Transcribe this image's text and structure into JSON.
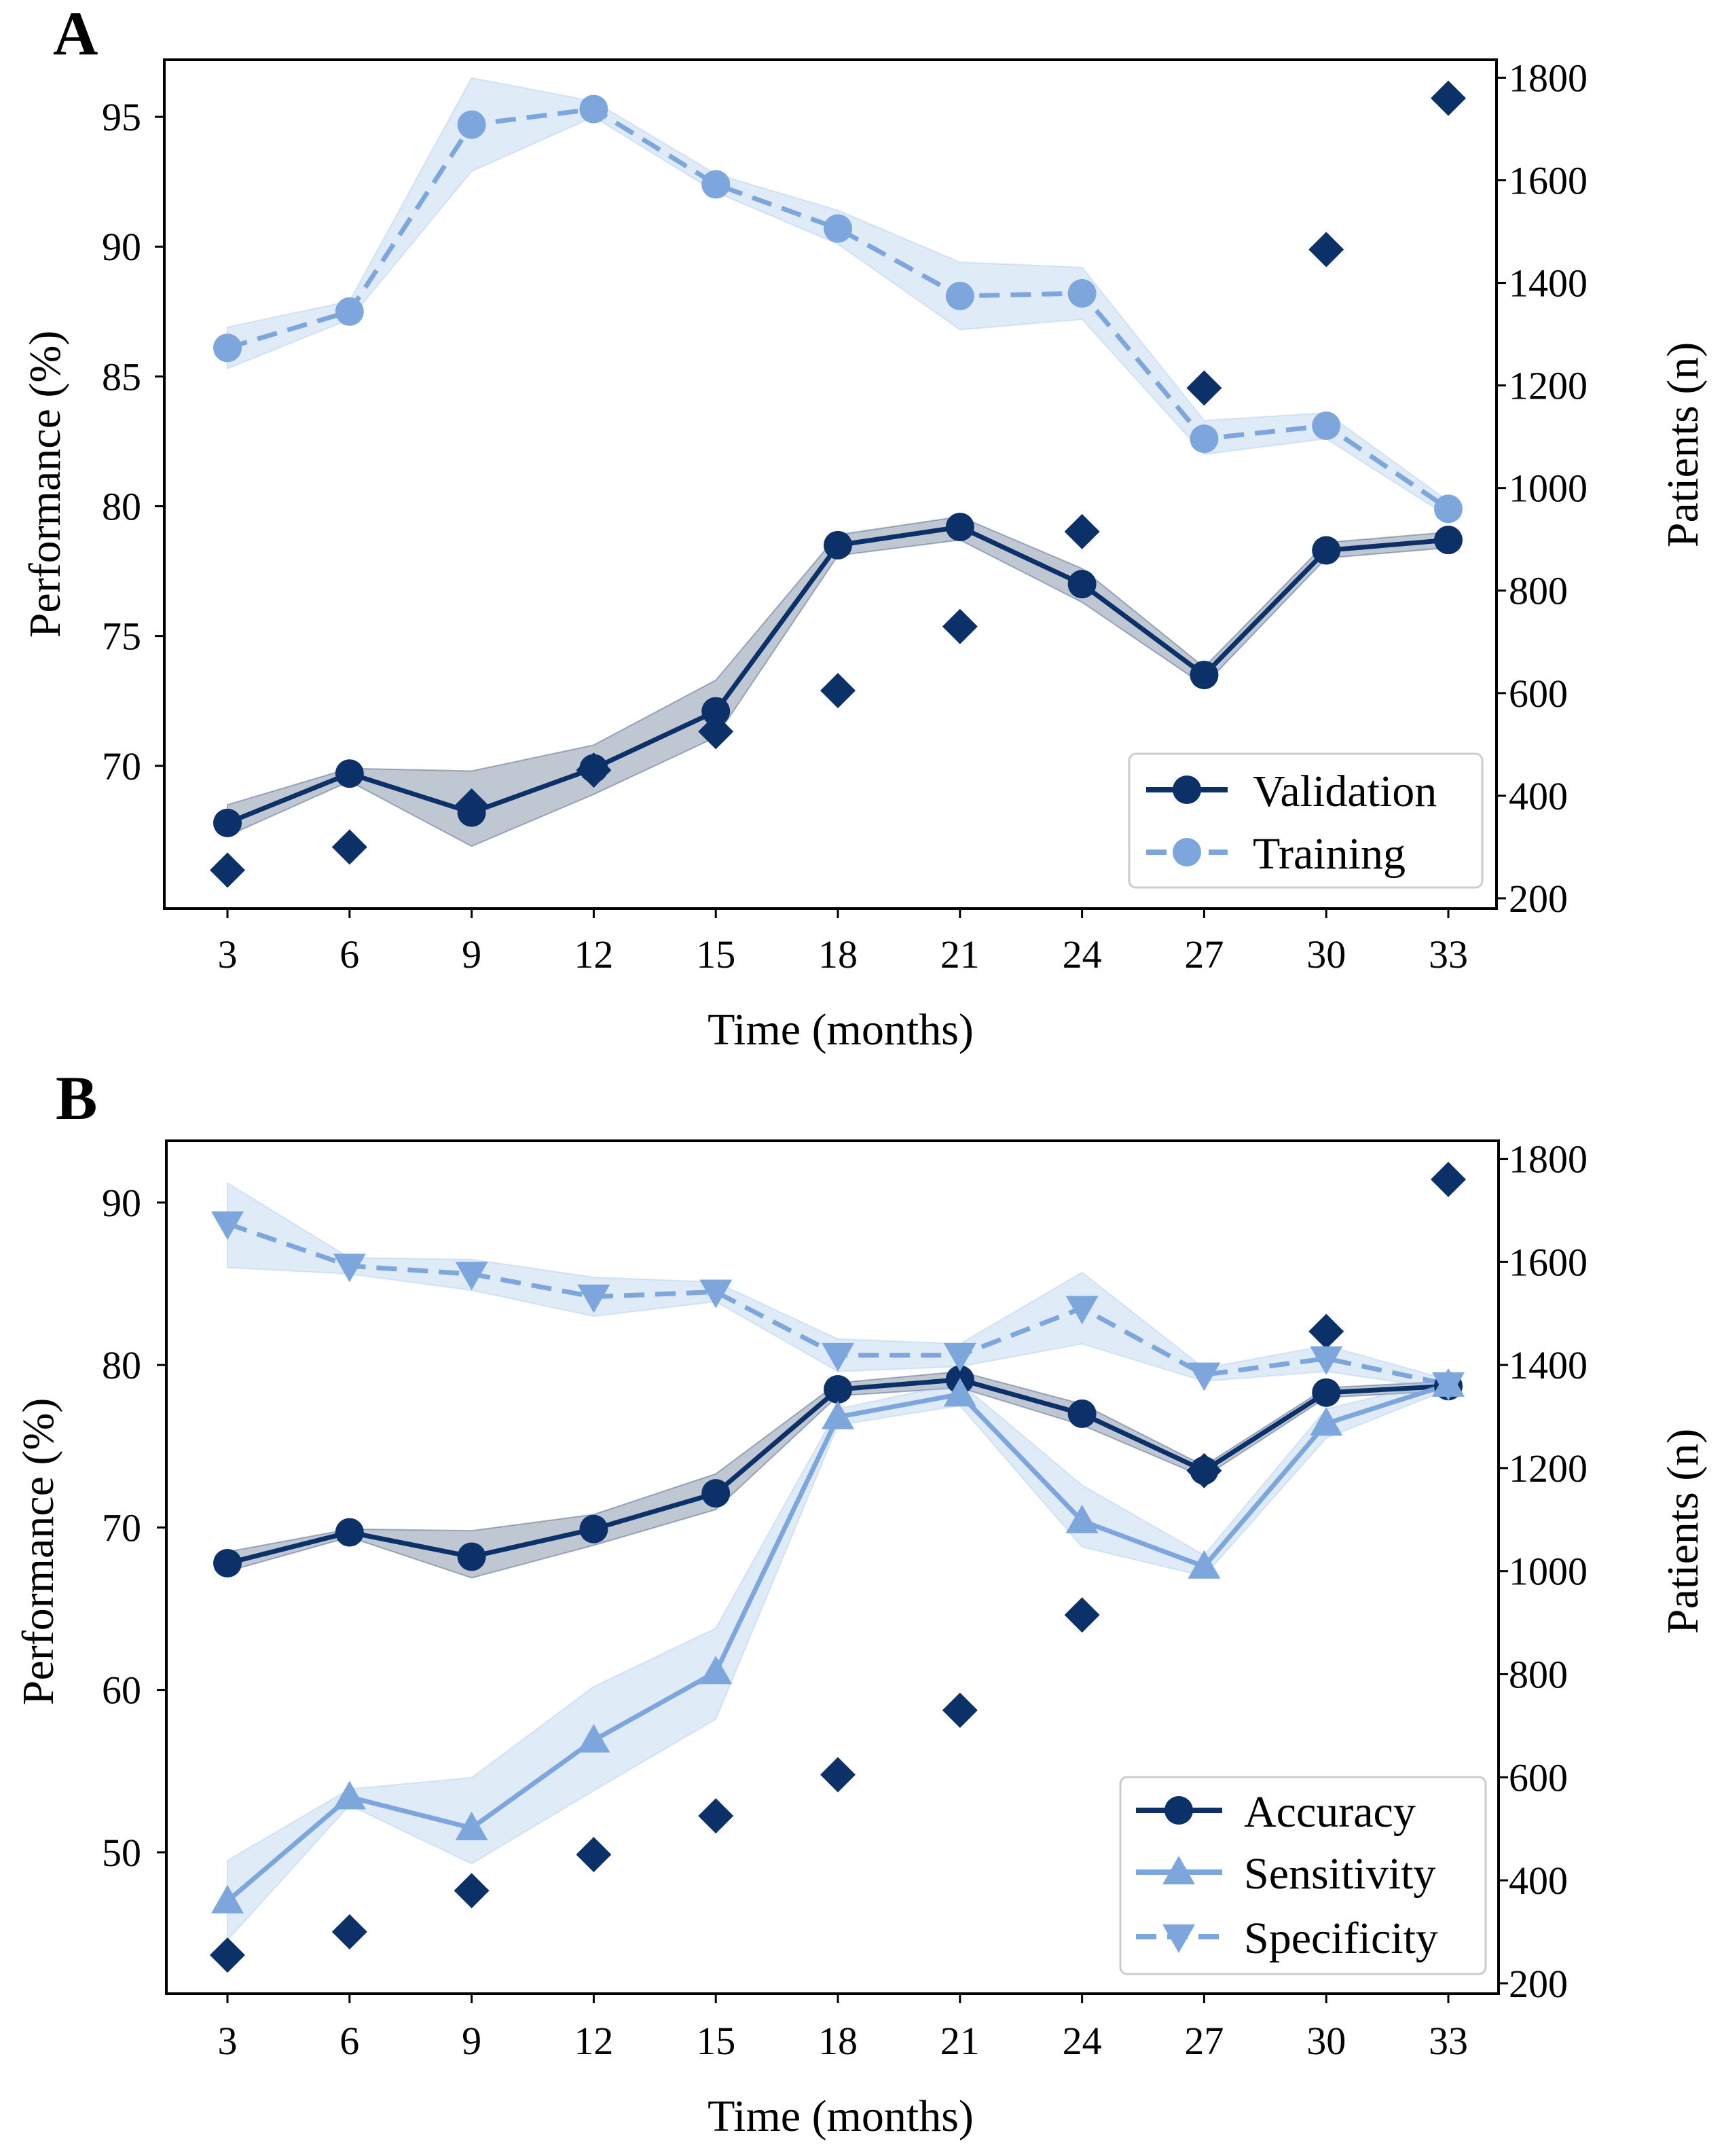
{
  "colors": {
    "dark": "#0b3168",
    "light": "#7da7dc",
    "band_dark": "#1a3560",
    "band_light": "#9fc0ea",
    "frame": "#000000"
  },
  "chart_data": [
    {
      "type": "line",
      "panel_label": "A",
      "xlabel": "Time (months)",
      "ylabel": "Performance (%)",
      "y2label": "Patients (n)",
      "x": [
        3,
        6,
        9,
        12,
        15,
        18,
        21,
        24,
        27,
        30,
        33
      ],
      "xticks": [
        "3",
        "6",
        "9",
        "12",
        "15",
        "18",
        "21",
        "24",
        "27",
        "30",
        "33"
      ],
      "ylim": [
        64.5,
        97.2
      ],
      "yticks": [
        "70",
        "75",
        "80",
        "85",
        "90",
        "95"
      ],
      "y2lim": [
        180,
        1835
      ],
      "y2ticks": [
        "200",
        "400",
        "600",
        "800",
        "1000",
        "1200",
        "1400",
        "1600",
        "1800"
      ],
      "series": [
        {
          "name": "Validation",
          "style": "solid",
          "marker": "circle",
          "color": "dark",
          "values": [
            67.8,
            69.7,
            68.2,
            69.9,
            72.1,
            78.5,
            79.2,
            77.0,
            73.5,
            78.3,
            78.7
          ],
          "band_low": [
            67.3,
            69.4,
            66.9,
            68.9,
            71.1,
            78.1,
            78.7,
            76.3,
            73.1,
            78.0,
            78.4
          ],
          "band_high": [
            68.5,
            69.9,
            69.8,
            70.8,
            73.3,
            78.9,
            79.6,
            77.6,
            73.8,
            78.6,
            79.0
          ]
        },
        {
          "name": "Training",
          "style": "dashed",
          "marker": "circle",
          "color": "light",
          "values": [
            86.1,
            87.5,
            94.7,
            95.3,
            92.4,
            90.7,
            88.1,
            88.2,
            82.6,
            83.1,
            79.9
          ],
          "band_low": [
            85.3,
            87.2,
            92.9,
            95.0,
            92.1,
            90.1,
            86.8,
            87.2,
            82.0,
            82.6,
            79.6
          ],
          "band_high": [
            86.9,
            87.9,
            96.5,
            95.6,
            92.8,
            91.4,
            89.4,
            89.2,
            83.3,
            83.6,
            80.2
          ]
        }
      ],
      "patients": {
        "name": "Patients (n)",
        "marker": "diamond",
        "color": "dark",
        "values": [
          255,
          300,
          380,
          450,
          525,
          605,
          730,
          915,
          1195,
          1465,
          1760
        ]
      },
      "legend_position": "bottom-right"
    },
    {
      "type": "line",
      "panel_label": "B",
      "xlabel": "Time (months)",
      "ylabel": "Performance (%)",
      "y2label": "Patients (n)",
      "x": [
        3,
        6,
        9,
        12,
        15,
        18,
        21,
        24,
        27,
        30,
        33
      ],
      "xticks": [
        "3",
        "6",
        "9",
        "12",
        "15",
        "18",
        "21",
        "24",
        "27",
        "30",
        "33"
      ],
      "ylim": [
        41.3,
        93.8
      ],
      "yticks": [
        "50",
        "60",
        "70",
        "80",
        "90"
      ],
      "y2lim": [
        180,
        1835
      ],
      "y2ticks": [
        "200",
        "400",
        "600",
        "800",
        "1000",
        "1200",
        "1400",
        "1600",
        "1800"
      ],
      "series": [
        {
          "name": "Accuracy",
          "style": "solid",
          "marker": "circle",
          "color": "dark",
          "values": [
            67.8,
            69.7,
            68.2,
            69.9,
            72.1,
            78.5,
            79.1,
            77.0,
            73.5,
            78.3,
            78.7
          ],
          "band_low": [
            67.3,
            69.4,
            66.9,
            68.9,
            71.1,
            78.1,
            78.6,
            76.3,
            73.1,
            78.0,
            78.4
          ],
          "band_high": [
            68.5,
            69.9,
            69.8,
            70.8,
            73.3,
            78.9,
            79.6,
            77.6,
            73.8,
            78.6,
            79.0
          ]
        },
        {
          "name": "Sensitivity",
          "style": "solid",
          "marker": "triangle-up",
          "color": "light",
          "values": [
            47.0,
            53.4,
            51.5,
            56.9,
            61.1,
            76.8,
            78.2,
            70.4,
            67.6,
            76.4,
            78.8
          ],
          "band_low": [
            44.6,
            52.9,
            49.3,
            53.8,
            58.2,
            76.3,
            77.5,
            68.8,
            67.0,
            75.5,
            78.5
          ],
          "band_high": [
            49.5,
            53.9,
            54.6,
            60.2,
            63.8,
            77.3,
            78.9,
            72.6,
            68.3,
            77.3,
            79.1
          ]
        },
        {
          "name": "Specificity",
          "style": "dashed",
          "marker": "triangle-down",
          "color": "light",
          "values": [
            88.7,
            86.1,
            85.6,
            84.2,
            84.5,
            80.6,
            80.6,
            83.5,
            79.4,
            80.4,
            78.8
          ],
          "band_low": [
            86.0,
            85.6,
            84.6,
            83.0,
            83.9,
            79.6,
            79.9,
            81.3,
            79.0,
            79.6,
            78.5
          ],
          "band_high": [
            91.2,
            86.6,
            86.5,
            85.4,
            85.1,
            81.6,
            81.3,
            85.7,
            79.8,
            81.2,
            79.1
          ]
        }
      ],
      "patients": {
        "name": "Patients (n)",
        "marker": "diamond",
        "color": "dark",
        "values": [
          255,
          300,
          380,
          450,
          525,
          605,
          730,
          915,
          1195,
          1465,
          1760
        ]
      },
      "legend_position": "bottom-right"
    }
  ]
}
